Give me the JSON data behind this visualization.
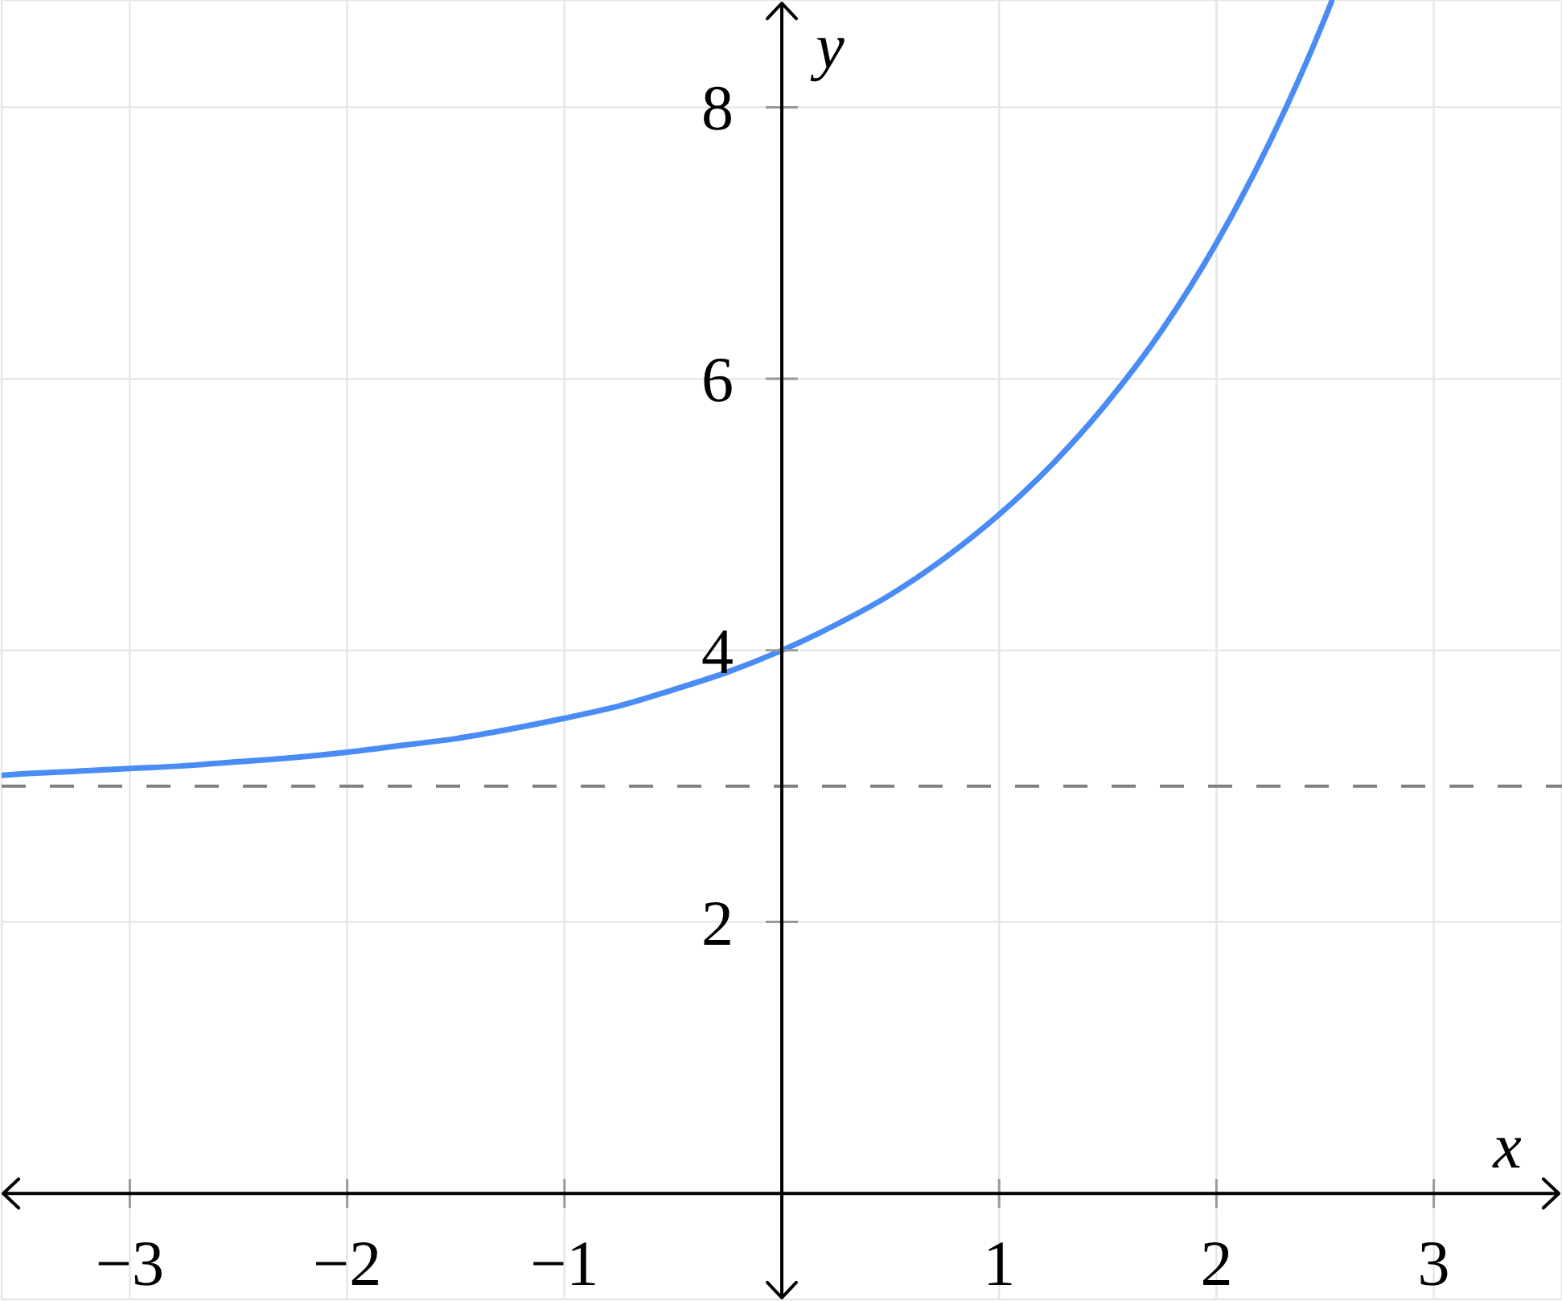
{
  "chart_data": {
    "type": "line",
    "xlabel": "x",
    "ylabel": "y",
    "x": [
      -3.59,
      -3.5,
      -3.25,
      -3,
      -2.75,
      -2.5,
      -2.25,
      -2,
      -1.75,
      -1.5,
      -1.25,
      -1,
      -0.75,
      -0.5,
      -0.25,
      0,
      0.25,
      0.5,
      0.75,
      1,
      1.25,
      1.5,
      1.75,
      2,
      2.25,
      2.5,
      2.53
    ],
    "series": [
      {
        "color": "#4a8cf5",
        "values": [
          3.08,
          3.09,
          3.11,
          3.13,
          3.15,
          3.18,
          3.21,
          3.25,
          3.3,
          3.35,
          3.42,
          3.5,
          3.59,
          3.71,
          3.84,
          4,
          4.19,
          4.41,
          4.68,
          5,
          5.38,
          5.83,
          6.36,
          7,
          7.76,
          8.66,
          8.78
        ]
      }
    ],
    "xlim": [
      -3.59,
      3.59
    ],
    "ylim": [
      -0.78,
      8.79
    ],
    "xticks": [
      {
        "value": -3,
        "label": "−3"
      },
      {
        "value": -2,
        "label": "−2"
      },
      {
        "value": -1,
        "label": "−1"
      },
      1,
      2,
      3
    ],
    "yticks": [
      2,
      4,
      6,
      8
    ],
    "ref_lines": [
      {
        "axis": "y",
        "value": 3,
        "color": "#808080",
        "line_style": "dashed"
      }
    ],
    "grid": true,
    "marker": "none",
    "line_style": "solid"
  }
}
